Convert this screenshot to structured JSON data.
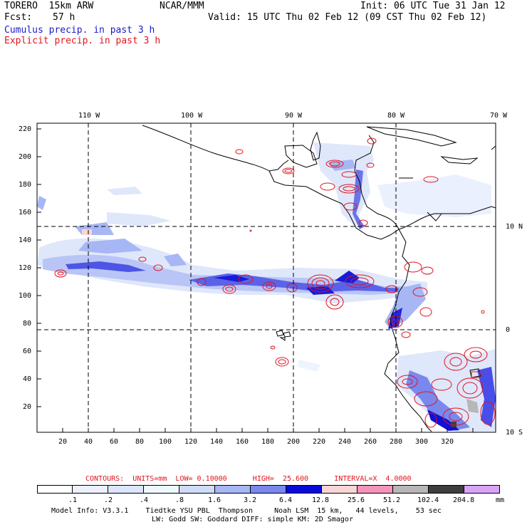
{
  "header": {
    "model": "TORERO  15km ARW",
    "org": "NCAR/MMM",
    "init": "Init: 06 UTC Tue 31 Jan 12",
    "fcst_label": "Fcst:",
    "fcst_value": "57 h",
    "valid": "Valid: 15 UTC Thu 02 Feb 12 (09 CST Thu 02 Feb 12)",
    "line_cumulus": "Cumulus precip. in past 3 h",
    "line_explicit": "Explicit precip. in past 3 h"
  },
  "colors": {
    "cumulus_text": "#1a1acd",
    "explicit_text": "#e0141e",
    "contour": "#e0141e",
    "coastline": "#000000"
  },
  "map": {
    "top_lon_labels": [
      "110 W",
      "100 W",
      "90 W",
      "80 W",
      "70 W"
    ],
    "right_lat_labels": [
      "10 N",
      "0",
      "10 S"
    ],
    "y_ticks": [
      "220",
      "200",
      "180",
      "160",
      "140",
      "120",
      "100",
      "80",
      "60",
      "40",
      "20"
    ],
    "x_ticks": [
      "20",
      "40",
      "60",
      "80",
      "100",
      "120",
      "140",
      "160",
      "180",
      "200",
      "220",
      "240",
      "260",
      "280",
      "300",
      "320"
    ]
  },
  "contours_line": "CONTOURS:  UNITS=mm  LOW= 0.10000      HIGH=  25.600      INTERVAL=X  4.0000",
  "colorbar": {
    "labels": [
      ".1",
      ".2",
      ".4",
      ".8",
      "1.6",
      "3.2",
      "6.4",
      "12.8",
      "25.6",
      "51.2",
      "102.4",
      "204.8"
    ],
    "unit": "mm",
    "colors": [
      "#ffffff",
      "#edf1fc",
      "#dde6fb",
      "#eef9fd",
      "#cfdcf8",
      "#a7b6f4",
      "#7a88ee",
      "#4a4ee8",
      "#0a0ad8",
      "#f9d6d6",
      "#f394ba",
      "#b7b7b7",
      "#3e3e3e",
      "#d9a4f7"
    ]
  },
  "footer": {
    "line1": "Model Info: V3.3.1    Tiedtke YSU PBL  Thompson     Noah LSM  15 km,   44 levels,    53 sec",
    "line2": "LW: Godd SW: Goddard DIFF: simple KM: 2D Smagor"
  }
}
